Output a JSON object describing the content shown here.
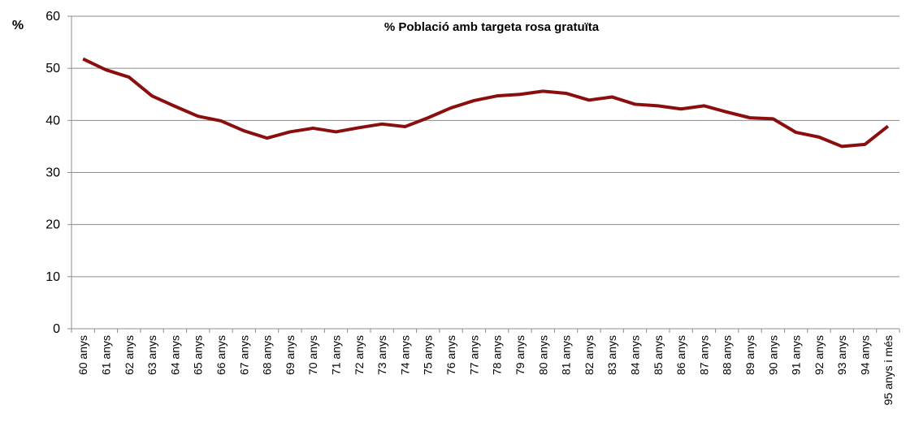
{
  "chart_data": {
    "type": "line",
    "title": "% Població amb targeta rosa gratuïta",
    "y_label": "%",
    "categories": [
      "60 anys",
      "61 anys",
      "62 anys",
      "63 anys",
      "64 anys",
      "65 anys",
      "66 anys",
      "67 anys",
      "68 anys",
      "69 anys",
      "70 anys",
      "71 anys",
      "72 anys",
      "73 anys",
      "74 anys",
      "75 anys",
      "76 anys",
      "77 anys",
      "78 anys",
      "79 anys",
      "80 anys",
      "81 anys",
      "82 anys",
      "83 anys",
      "84 anys",
      "85 anys",
      "86 anys",
      "87 anys",
      "88 anys",
      "89 anys",
      "90 anys",
      "91 anys",
      "92 anys",
      "93 anys",
      "94 anys",
      "95 anys i més"
    ],
    "series": [
      {
        "color": "#8b0e0e",
        "values": [
          51.8,
          49.7,
          48.3,
          44.7,
          42.7,
          40.8,
          39.9,
          38.0,
          36.6,
          37.8,
          38.5,
          37.8,
          38.6,
          39.3,
          38.8,
          40.5,
          42.4,
          43.8,
          44.7,
          45.0,
          45.6,
          45.2,
          43.9,
          44.5,
          43.1,
          42.8,
          42.2,
          42.8,
          41.6,
          40.5,
          40.3,
          37.7,
          36.8,
          35.0,
          35.4,
          38.9
        ]
      }
    ],
    "ylim": [
      0,
      60
    ],
    "yticks": [
      0,
      10,
      20,
      30,
      40,
      50,
      60
    ],
    "grid": true
  }
}
